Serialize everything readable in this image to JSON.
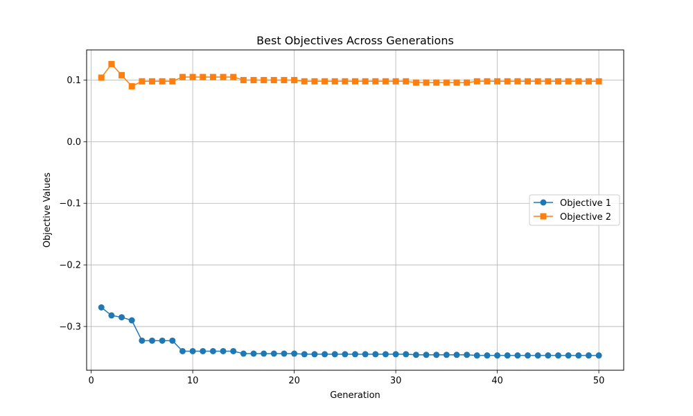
{
  "chart_data": {
    "type": "line",
    "title": "Best Objectives Across Generations",
    "xlabel": "Generation",
    "ylabel": "Objective Values",
    "xlim": [
      -0.45,
      52.45
    ],
    "ylim": [
      -0.371,
      0.149
    ],
    "xticks": [
      0,
      10,
      20,
      30,
      40,
      50
    ],
    "xtick_labels": [
      "0",
      "10",
      "20",
      "30",
      "40",
      "50"
    ],
    "yticks": [
      -0.3,
      -0.2,
      -0.1,
      0.0,
      0.1
    ],
    "ytick_labels": [
      "−0.3",
      "−0.2",
      "−0.1",
      "0.0",
      "0.1"
    ],
    "grid": true,
    "legend_position": "center-right",
    "x": [
      1,
      2,
      3,
      4,
      5,
      6,
      7,
      8,
      9,
      10,
      11,
      12,
      13,
      14,
      15,
      16,
      17,
      18,
      19,
      20,
      21,
      22,
      23,
      24,
      25,
      26,
      27,
      28,
      29,
      30,
      31,
      32,
      33,
      34,
      35,
      36,
      37,
      38,
      39,
      40,
      41,
      42,
      43,
      44,
      45,
      46,
      47,
      48,
      49,
      50
    ],
    "series": [
      {
        "name": "Objective 1",
        "color": "#1f77b4",
        "marker": "circle",
        "values": [
          -0.269,
          -0.282,
          -0.285,
          -0.29,
          -0.323,
          -0.323,
          -0.323,
          -0.323,
          -0.34,
          -0.34,
          -0.34,
          -0.34,
          -0.34,
          -0.34,
          -0.344,
          -0.344,
          -0.344,
          -0.344,
          -0.344,
          -0.344,
          -0.345,
          -0.345,
          -0.345,
          -0.345,
          -0.345,
          -0.345,
          -0.345,
          -0.345,
          -0.345,
          -0.345,
          -0.345,
          -0.346,
          -0.346,
          -0.346,
          -0.346,
          -0.346,
          -0.346,
          -0.347,
          -0.347,
          -0.347,
          -0.347,
          -0.347,
          -0.347,
          -0.347,
          -0.347,
          -0.347,
          -0.347,
          -0.347,
          -0.347,
          -0.347
        ]
      },
      {
        "name": "Objective 2",
        "color": "#ff7f0e",
        "marker": "square",
        "values": [
          0.104,
          0.126,
          0.108,
          0.09,
          0.098,
          0.098,
          0.098,
          0.098,
          0.105,
          0.105,
          0.105,
          0.105,
          0.105,
          0.105,
          0.1,
          0.1,
          0.1,
          0.1,
          0.1,
          0.1,
          0.098,
          0.098,
          0.098,
          0.098,
          0.098,
          0.098,
          0.098,
          0.098,
          0.098,
          0.098,
          0.098,
          0.096,
          0.096,
          0.096,
          0.096,
          0.096,
          0.096,
          0.098,
          0.098,
          0.098,
          0.098,
          0.098,
          0.098,
          0.098,
          0.098,
          0.098,
          0.098,
          0.098,
          0.098,
          0.098
        ]
      }
    ]
  }
}
